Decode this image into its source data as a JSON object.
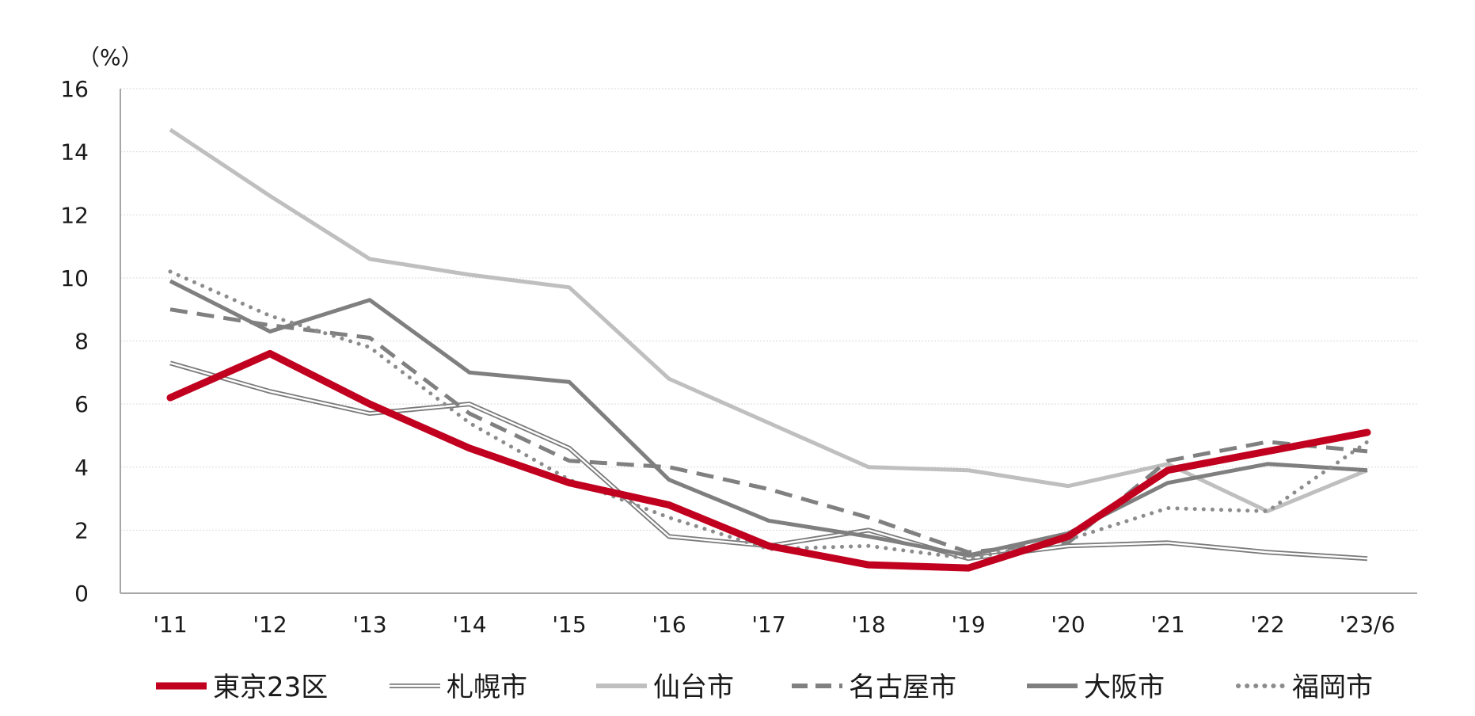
{
  "chart_data": {
    "type": "line",
    "unit_label": "（%）",
    "categories": [
      "'11",
      "'12",
      "'13",
      "'14",
      "'15",
      "'16",
      "'17",
      "'18",
      "'19",
      "'20",
      "'21",
      "'22",
      "'23/6"
    ],
    "ylim": [
      0,
      16
    ],
    "yticks": [
      0,
      2,
      4,
      6,
      8,
      10,
      12,
      14,
      16
    ],
    "grid": true,
    "legend_position": "bottom",
    "series": [
      {
        "name": "東京23区",
        "color": "#c0001e",
        "style": "thick",
        "values": [
          6.2,
          7.6,
          6.0,
          4.6,
          3.5,
          2.8,
          1.5,
          0.9,
          0.8,
          1.8,
          3.9,
          4.5,
          5.1
        ]
      },
      {
        "name": "札幌市",
        "color": "#7a7a7a",
        "style": "double",
        "values": [
          7.3,
          6.4,
          5.7,
          6.0,
          4.6,
          1.8,
          1.5,
          2.0,
          1.1,
          1.5,
          1.6,
          1.3,
          1.1
        ]
      },
      {
        "name": "仙台市",
        "color": "#bfbfbf",
        "style": "solid",
        "values": [
          14.7,
          12.6,
          10.6,
          10.1,
          9.7,
          6.8,
          5.4,
          4.0,
          3.9,
          3.4,
          4.1,
          2.6,
          3.9
        ]
      },
      {
        "name": "名古屋市",
        "color": "#808080",
        "style": "dashed",
        "values": [
          9.0,
          8.5,
          8.1,
          5.7,
          4.2,
          4.0,
          3.3,
          2.4,
          1.3,
          1.6,
          4.2,
          4.8,
          4.5
        ]
      },
      {
        "name": "大阪市",
        "color": "#7f7f7f",
        "style": "solid-medium",
        "values": [
          9.9,
          8.3,
          9.3,
          7.0,
          6.7,
          3.6,
          2.3,
          1.8,
          1.2,
          1.9,
          3.5,
          4.1,
          3.9
        ]
      },
      {
        "name": "福岡市",
        "color": "#8c8c8c",
        "style": "dotted",
        "values": [
          10.2,
          8.8,
          7.8,
          5.4,
          3.6,
          2.4,
          1.4,
          1.5,
          1.1,
          1.7,
          2.7,
          2.6,
          4.8
        ]
      }
    ]
  }
}
